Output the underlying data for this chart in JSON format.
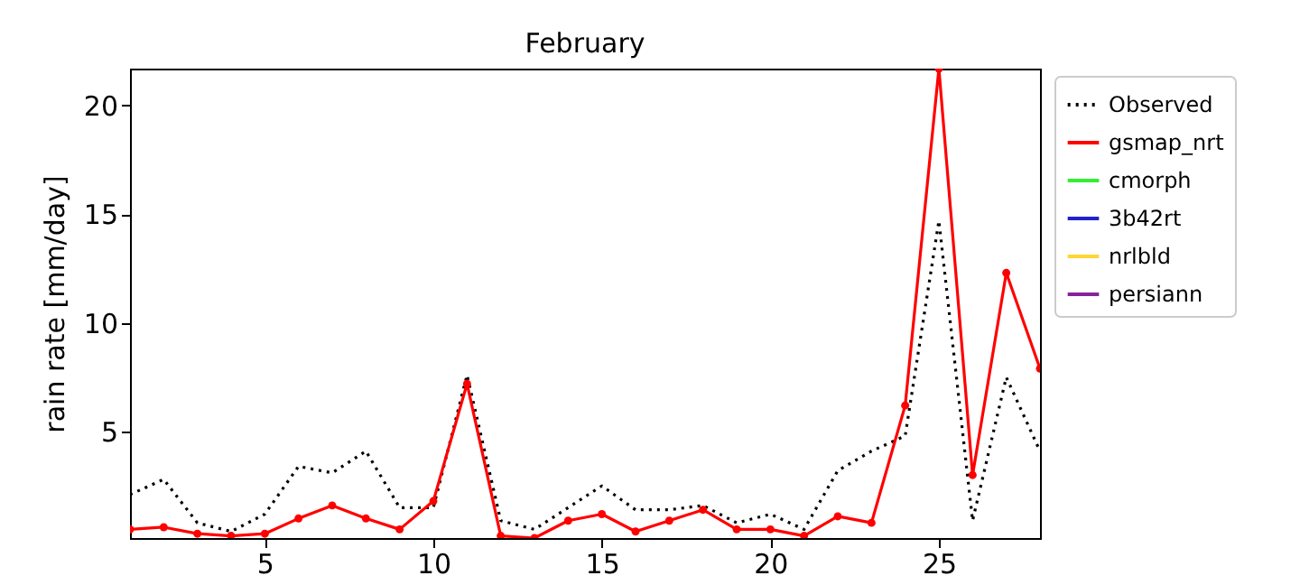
{
  "chart_data": {
    "type": "line",
    "title": "February",
    "ylabel": "rain rate [mm/day]",
    "x": [
      1,
      2,
      3,
      4,
      5,
      6,
      7,
      8,
      9,
      10,
      11,
      12,
      13,
      14,
      15,
      16,
      17,
      18,
      19,
      20,
      21,
      22,
      23,
      24,
      25,
      26,
      27,
      28
    ],
    "xlim": [
      1,
      28
    ],
    "xticks": [
      5,
      10,
      15,
      20,
      25
    ],
    "ylim": [
      0.1,
      21.7
    ],
    "yticks": [
      5,
      10,
      15,
      20
    ],
    "grid": false,
    "legend": "top right",
    "series": [
      {
        "name": "Observed",
        "color": "#000000",
        "line_style": "dotted",
        "marker": "none",
        "values": [
          2.1,
          2.8,
          0.8,
          0.4,
          1.2,
          3.4,
          3.1,
          4.1,
          1.5,
          1.5,
          7.6,
          0.9,
          0.5,
          1.5,
          2.5,
          1.4,
          1.4,
          1.6,
          0.8,
          1.2,
          0.5,
          3.2,
          4.1,
          4.8,
          14.7,
          0.9,
          7.5,
          4.1
        ]
      },
      {
        "name": "gsmap_nrt",
        "color": "#ff0000",
        "line_style": "solid",
        "marker": "circle",
        "values": [
          0.5,
          0.6,
          0.3,
          0.2,
          0.3,
          1.0,
          1.6,
          1.0,
          0.5,
          1.8,
          7.2,
          0.2,
          0.1,
          0.9,
          1.2,
          0.4,
          0.9,
          1.4,
          0.5,
          0.5,
          0.2,
          1.1,
          0.8,
          6.2,
          21.7,
          3.0,
          12.3,
          7.9
        ]
      },
      {
        "name": "cmorph",
        "color": "#33ee33",
        "line_style": "solid",
        "marker": "none",
        "values": [
          null,
          null,
          null,
          null,
          null,
          null,
          null,
          null,
          null,
          null,
          null,
          null,
          null,
          null,
          null,
          null,
          null,
          null,
          null,
          null,
          null,
          null,
          null,
          null,
          null,
          null,
          null,
          null
        ]
      },
      {
        "name": "3b42rt",
        "color": "#2222cc",
        "line_style": "solid",
        "marker": "none",
        "values": [
          null,
          null,
          null,
          null,
          null,
          null,
          null,
          null,
          null,
          null,
          null,
          null,
          null,
          null,
          null,
          null,
          null,
          null,
          null,
          null,
          null,
          null,
          null,
          null,
          null,
          null,
          null,
          null
        ]
      },
      {
        "name": "nrlbld",
        "color": "#ffd633",
        "line_style": "solid",
        "marker": "none",
        "values": [
          null,
          null,
          null,
          null,
          null,
          null,
          null,
          null,
          null,
          null,
          null,
          null,
          null,
          null,
          null,
          null,
          null,
          null,
          null,
          null,
          null,
          null,
          null,
          null,
          null,
          null,
          null,
          null
        ]
      },
      {
        "name": "persiann",
        "color": "#882299",
        "line_style": "solid",
        "marker": "none",
        "values": [
          null,
          null,
          null,
          null,
          null,
          null,
          null,
          null,
          null,
          null,
          null,
          null,
          null,
          null,
          null,
          null,
          null,
          null,
          null,
          null,
          null,
          null,
          null,
          null,
          null,
          null,
          null,
          null
        ]
      }
    ]
  }
}
